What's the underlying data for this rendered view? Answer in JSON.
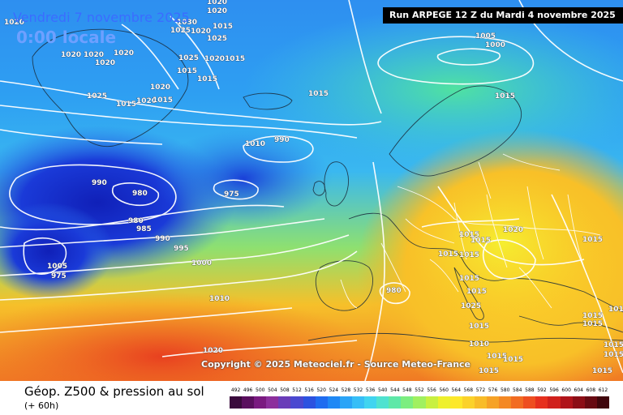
{
  "header": {
    "date_title": "Vendredi 7 novembre 2025",
    "time_title": "0:00 locale",
    "run_banner": "Run ARPEGE 12 Z du Mardi 4 novembre 2025"
  },
  "footer": {
    "product_title": "Géop. Z500 & pression au sol",
    "product_subtitle": "(+ 60h)",
    "copyright": "Copyright © 2025 Meteociel.fr - Source Meteo-France"
  },
  "legend": {
    "labels": [
      "492",
      "496",
      "500",
      "504",
      "508",
      "512",
      "516",
      "520",
      "524",
      "528",
      "532",
      "536",
      "540",
      "544",
      "548",
      "552",
      "556",
      "560",
      "564",
      "568",
      "572",
      "576",
      "580",
      "584",
      "588",
      "592",
      "596",
      "600",
      "604",
      "608",
      "612"
    ],
    "colors": [
      "#3a0a3c",
      "#5a0f5e",
      "#7a1a80",
      "#8c2f9c",
      "#6a3cb8",
      "#4a48d0",
      "#2c52e0",
      "#1f6cf0",
      "#1f88f5",
      "#2aa4f7",
      "#36bef7",
      "#40d4f0",
      "#4fe2d0",
      "#5ee8a8",
      "#7cee80",
      "#a0f060",
      "#c8f040",
      "#eef02c",
      "#fde82a",
      "#fbd22a",
      "#f8bc28",
      "#f6a226",
      "#f48824",
      "#f26c22",
      "#ee4e20",
      "#e6301e",
      "#d0201c",
      "#b0141a",
      "#8c0e16",
      "#680a12",
      "#40060c"
    ]
  },
  "pressure_labels": [
    "1020",
    "1020",
    "1020",
    "1030",
    "1025",
    "1015",
    "1020",
    "1025",
    "1020",
    "1020",
    "1020",
    "1025",
    "10201015",
    "1020",
    "1015",
    "1025",
    "1020",
    "1015",
    "1015",
    "1020",
    "1015",
    "1015",
    "1015",
    "1005",
    "1000",
    "1010",
    "990",
    "990",
    "980",
    "975",
    "980",
    "985",
    "990",
    "995",
    "1000",
    "1005",
    "975",
    "980",
    "1010",
    "1015",
    "1015",
    "1015",
    "1020",
    "1015",
    "1015",
    "1015",
    "1015",
    "1025",
    "1015",
    "1010",
    "1015",
    "1015",
    "1015",
    "1015",
    "1015",
    "1015",
    "1020",
    "1015",
    "1015",
    "1015"
  ]
}
